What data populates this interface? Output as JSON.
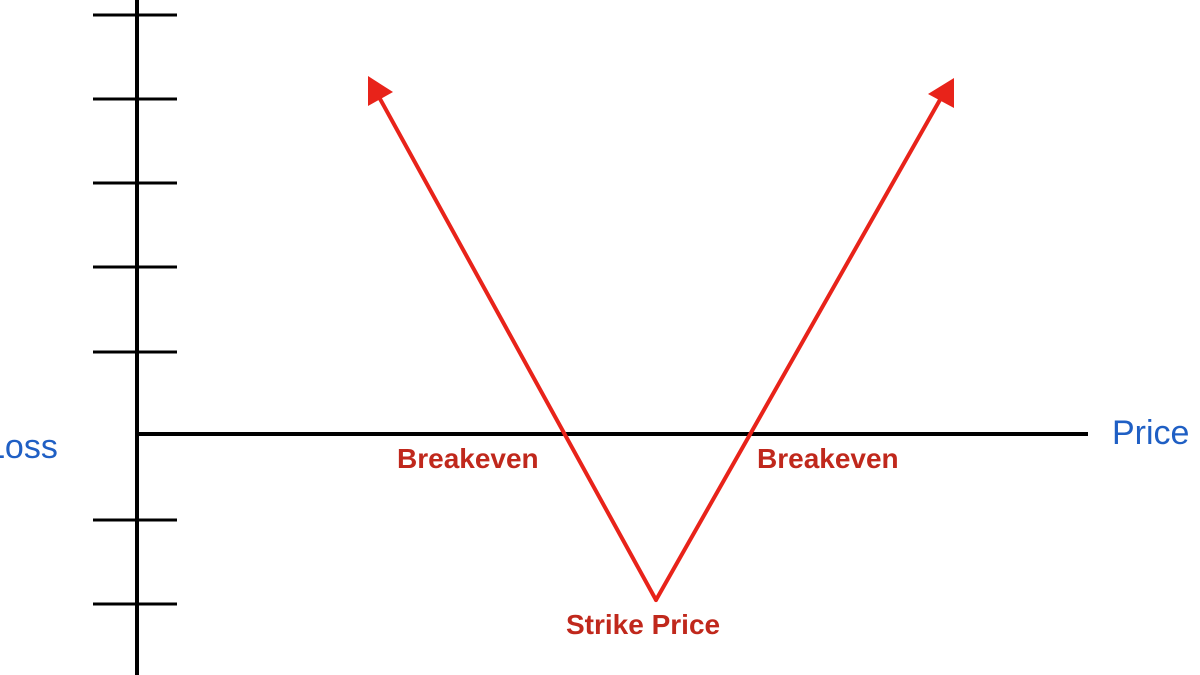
{
  "labels": {
    "y_axis": "Loss",
    "x_axis": "Price",
    "breakeven_left": "Breakeven",
    "breakeven_right": "Breakeven",
    "strike": "Strike Price"
  },
  "colors": {
    "axis": "#000000",
    "payoff": "#e8231a",
    "annotation": "#c0281c",
    "axis_label": "#1f5fc4"
  }
}
